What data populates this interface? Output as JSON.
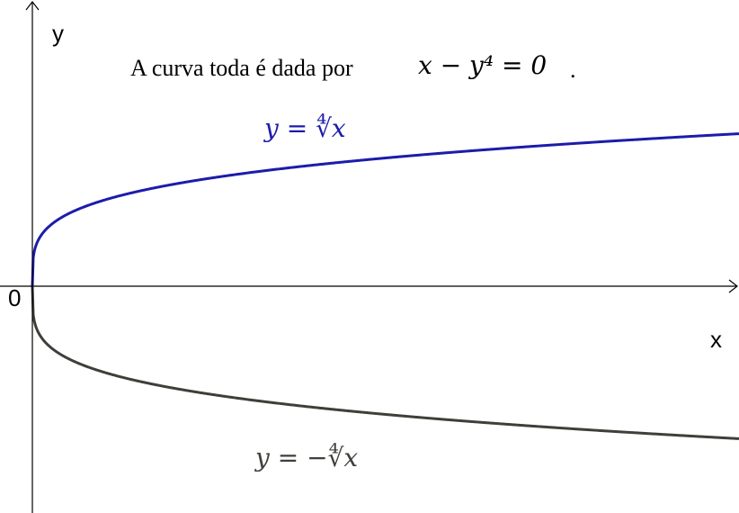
{
  "axes": {
    "y_label": "y",
    "x_label": "x",
    "origin_label": "0"
  },
  "note": {
    "text": "A curva toda é dada por",
    "equation": "x − y⁴ = 0",
    "period": "."
  },
  "curves": [
    {
      "label": "y = ∜x",
      "color": "#1c1cab"
    },
    {
      "label": "y = −∜x",
      "color": "#3f3f3a"
    }
  ]
}
